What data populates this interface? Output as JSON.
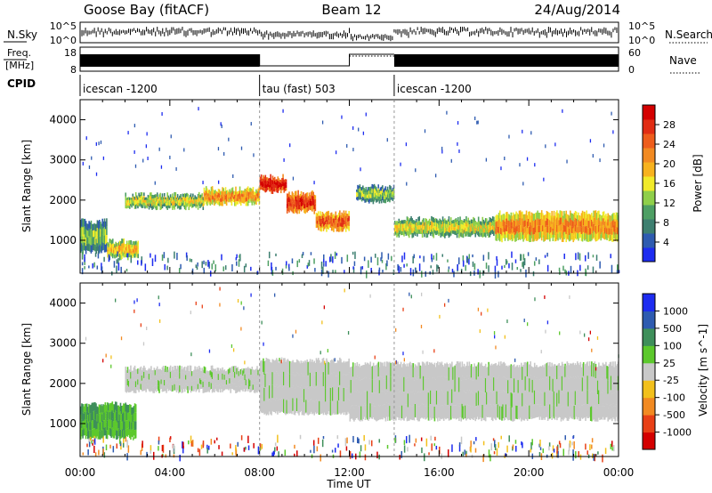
{
  "header": {
    "station": "Goose Bay (fitACF)",
    "beam": "Beam 12",
    "date": "24/Aug/2014"
  },
  "summary_panels": {
    "noise": {
      "left_label": "N.Sky",
      "right_label": "N.Search",
      "left_ticks": [
        "10^5",
        "10^0"
      ],
      "right_ticks": [
        "10^5",
        "10^0"
      ]
    },
    "freq": {
      "left_label_top": "Freq.",
      "left_label_bottom": "[MHz]",
      "left_ticks": [
        "18",
        "8"
      ],
      "right_label": "Nave",
      "right_ticks": [
        "60",
        "0"
      ]
    },
    "cpid": {
      "label": "CPID",
      "segments": [
        {
          "name": "icescan -1200",
          "start_hour": 0,
          "end_hour": 8
        },
        {
          "name": "tau (fast) 503",
          "start_hour": 8,
          "end_hour": 14
        },
        {
          "name": "icescan -1200",
          "start_hour": 14,
          "end_hour": 24
        }
      ]
    }
  },
  "chart_data": [
    {
      "type": "heatmap",
      "quantity": "power",
      "ylabel": "Slant Range [km]",
      "xlabel": "",
      "y_ticks": [
        1000,
        2000,
        3000,
        4000
      ],
      "ylim": [
        180,
        4500
      ],
      "xlim": [
        0,
        24
      ],
      "colorbar": {
        "label": "Power [dB]",
        "ticks": [
          "4",
          "8",
          "12",
          "16",
          "20",
          "24",
          "28"
        ],
        "colors": [
          "#1d2cf0",
          "#2e5bb0",
          "#3d7f70",
          "#4e9f64",
          "#8fcf4a",
          "#f1ea2a",
          "#f7b21e",
          "#f28a22",
          "#ee5d1c",
          "#e12d14",
          "#d40000"
        ]
      },
      "echo_regions": [
        {
          "start_hour": 0.0,
          "end_hour": 1.2,
          "range_km": [
            800,
            1400
          ],
          "level": 3
        },
        {
          "start_hour": 1.2,
          "end_hour": 2.6,
          "range_km": [
            650,
            900
          ],
          "level": 5
        },
        {
          "start_hour": 2.0,
          "end_hour": 5.5,
          "range_km": [
            1900,
            2050
          ],
          "level": 4
        },
        {
          "start_hour": 5.5,
          "end_hour": 8.0,
          "range_km": [
            2000,
            2200
          ],
          "level": 6
        },
        {
          "start_hour": 8.0,
          "end_hour": 9.2,
          "range_km": [
            2300,
            2500
          ],
          "level": 9
        },
        {
          "start_hour": 9.2,
          "end_hour": 10.5,
          "range_km": [
            1800,
            2100
          ],
          "level": 8
        },
        {
          "start_hour": 10.5,
          "end_hour": 12.0,
          "range_km": [
            1350,
            1600
          ],
          "level": 7
        },
        {
          "start_hour": 12.3,
          "end_hour": 14.0,
          "range_km": [
            2050,
            2250
          ],
          "level": 3
        },
        {
          "start_hour": 14.0,
          "end_hour": 18.5,
          "range_km": [
            1200,
            1450
          ],
          "level": 4
        },
        {
          "start_hour": 18.5,
          "end_hour": 24.0,
          "range_km": [
            1100,
            1600
          ],
          "level": 6
        }
      ]
    },
    {
      "type": "heatmap",
      "quantity": "velocity",
      "ylabel": "Slant Range [km]",
      "xlabel": "Time UT",
      "x_ticks": [
        "00:00",
        "04:00",
        "08:00",
        "12:00",
        "16:00",
        "20:00",
        "00:00"
      ],
      "y_ticks": [
        1000,
        2000,
        3000,
        4000
      ],
      "ylim": [
        180,
        4500
      ],
      "xlim": [
        0,
        24
      ],
      "colorbar": {
        "label": "Velocity [m s^-1]",
        "ticks": [
          "1000",
          "500",
          "100",
          "25",
          "-25",
          "-100",
          "-500",
          "-1000"
        ],
        "colors": [
          "#1d2cf0",
          "#2e5bb0",
          "#3e8f5a",
          "#5cc82c",
          "#c8c8c8",
          "#f2c01c",
          "#f28a22",
          "#e84016",
          "#d40000"
        ]
      },
      "echo_regions": [
        {
          "start_hour": 0.0,
          "end_hour": 2.5,
          "range_km": [
            750,
            1400
          ],
          "velocity_class": "positive"
        },
        {
          "start_hour": 2.0,
          "end_hour": 8.0,
          "range_km": [
            1900,
            2300
          ],
          "velocity_class": "near-zero"
        },
        {
          "start_hour": 8.0,
          "end_hour": 12.0,
          "range_km": [
            1350,
            2500
          ],
          "velocity_class": "near-zero"
        },
        {
          "start_hour": 12.0,
          "end_hour": 24.0,
          "range_km": [
            1200,
            2400
          ],
          "velocity_class": "near-zero"
        }
      ]
    }
  ]
}
